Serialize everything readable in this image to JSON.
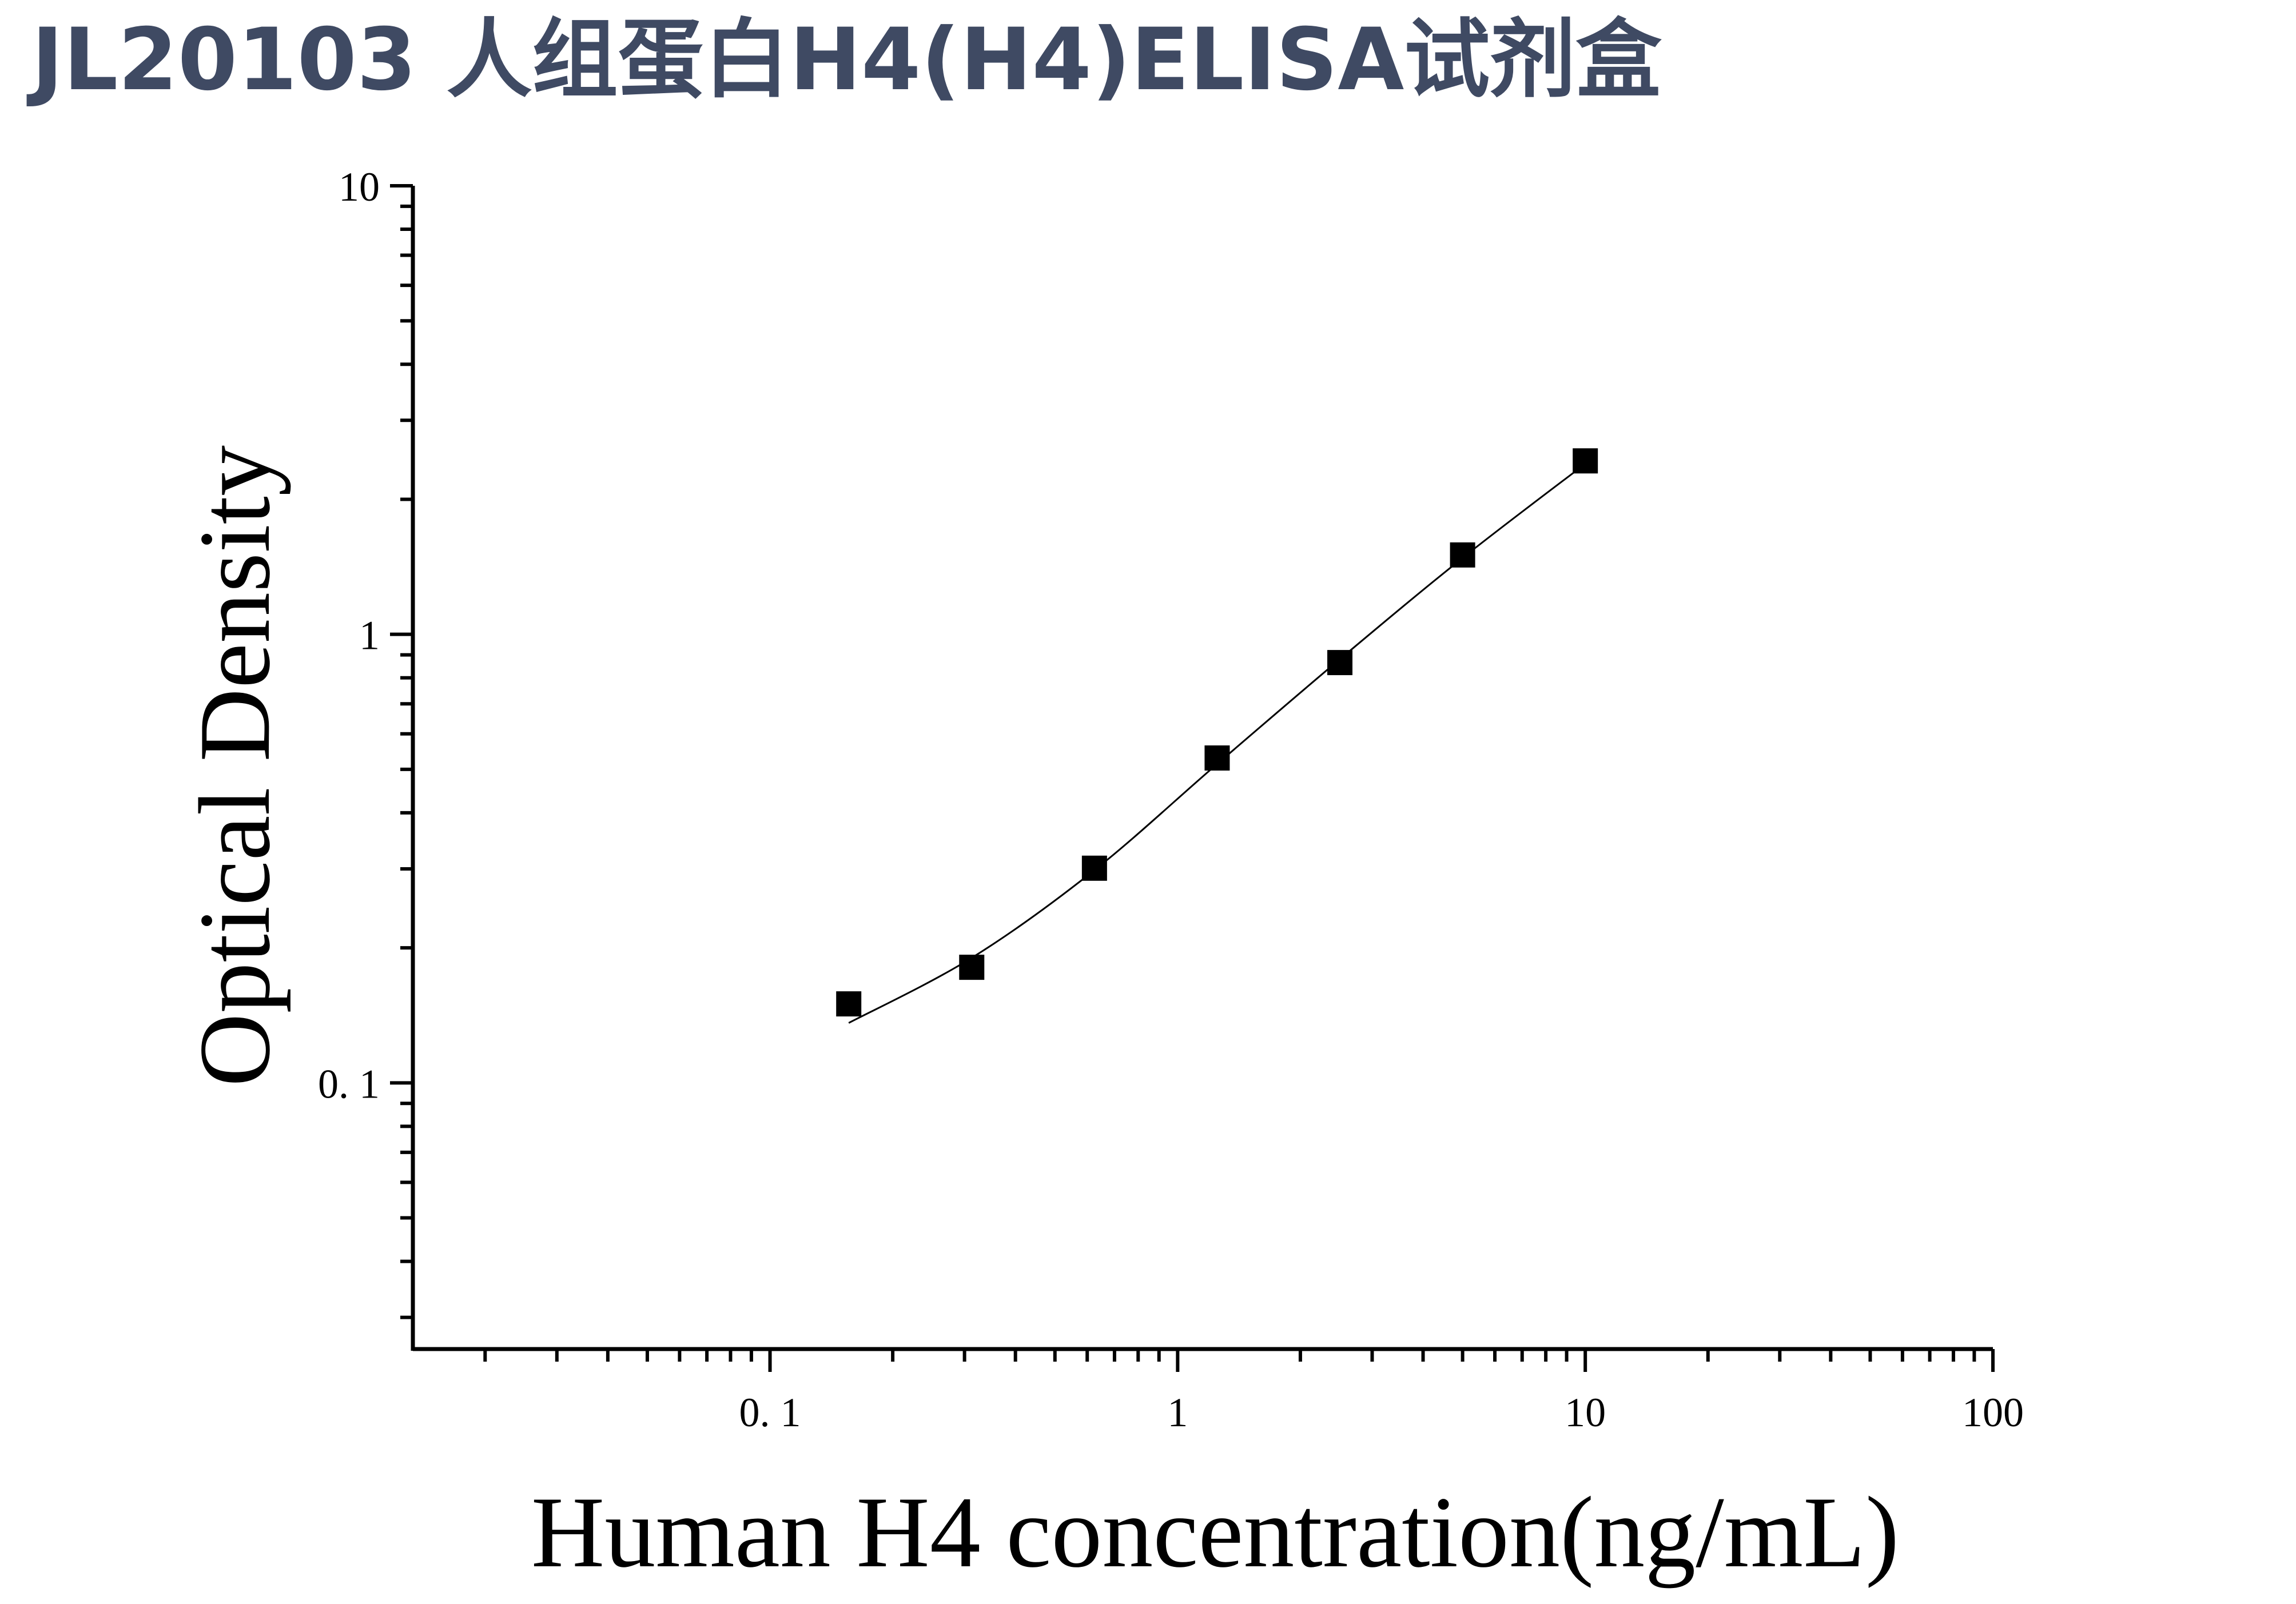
{
  "header": {
    "title": "JL20103 人组蛋白H4(H4)ELISA试剂盒"
  },
  "chart_data": {
    "type": "scatter",
    "title": "JL20103 人组蛋白H4(H4)ELISA试剂盒",
    "xlabel": "Human H4 concentration(ng/mL)",
    "ylabel": "Optical Density",
    "xscale": "log",
    "yscale": "log",
    "xlim": [
      0.0133,
      100
    ],
    "ylim": [
      0.0255,
      10
    ],
    "xticks": [
      {
        "value": 0.1,
        "label": "0. 1"
      },
      {
        "value": 1,
        "label": "1"
      },
      {
        "value": 10,
        "label": "10"
      },
      {
        "value": 100,
        "label": "100"
      }
    ],
    "yticks": [
      {
        "value": 0.1,
        "label": "0. 1"
      },
      {
        "value": 1,
        "label": "1"
      },
      {
        "value": 10,
        "label": "10"
      }
    ],
    "grid": false,
    "legend": "none",
    "series": [
      {
        "marker": "square",
        "color": "#000000",
        "x": [
          0.156,
          0.3125,
          0.625,
          1.25,
          2.5,
          5,
          10
        ],
        "y": [
          0.15,
          0.181,
          0.301,
          0.53,
          0.865,
          1.503,
          2.436
        ]
      }
    ],
    "fit_curve": {
      "color": "#000000",
      "x": [
        0.156,
        0.3125,
        0.625,
        1.25,
        2.5,
        5,
        10
      ],
      "y": [
        0.136,
        0.19,
        0.298,
        0.514,
        0.88,
        1.48,
        2.4
      ]
    }
  }
}
